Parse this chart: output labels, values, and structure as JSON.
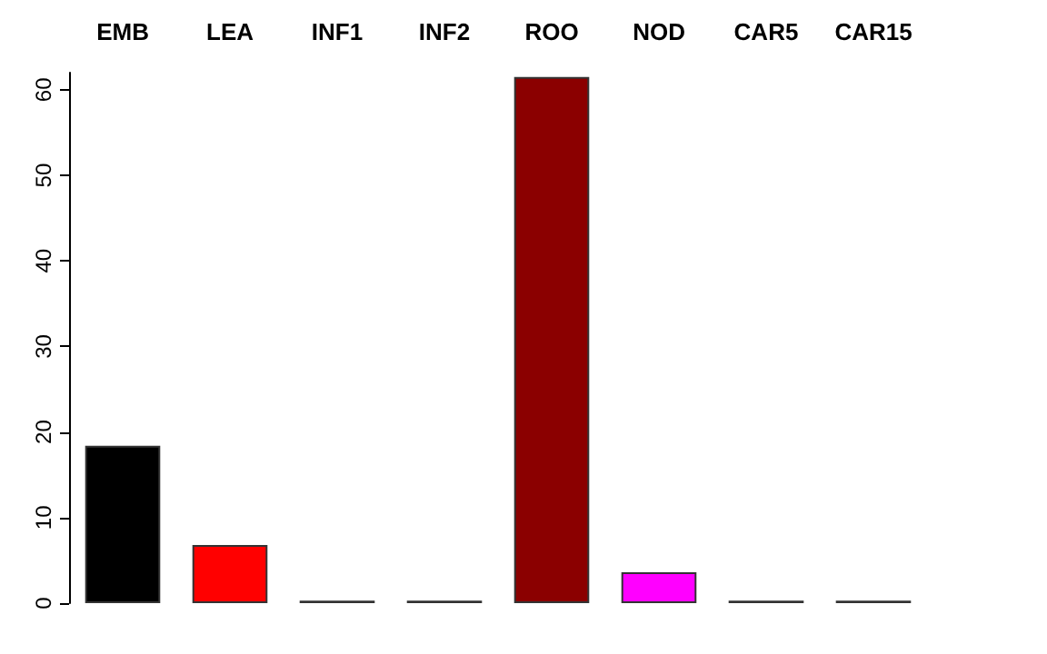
{
  "chart_data": {
    "type": "bar",
    "categories": [
      "EMB",
      "LEA",
      "INF1",
      "INF2",
      "ROO",
      "NOD",
      "CAR5",
      "CAR15"
    ],
    "values": [
      18.4,
      6.8,
      0.3,
      0.3,
      61.5,
      3.6,
      0.3,
      0.3
    ],
    "colors": [
      "#000000",
      "#ff0000",
      "#006400",
      "#0000cd",
      "#8b0000",
      "#ff00ff",
      "#000080",
      "#003300"
    ],
    "ylim": [
      0,
      62
    ],
    "yticks": [
      0,
      10,
      20,
      30,
      40,
      50,
      60
    ],
    "grid": false
  }
}
